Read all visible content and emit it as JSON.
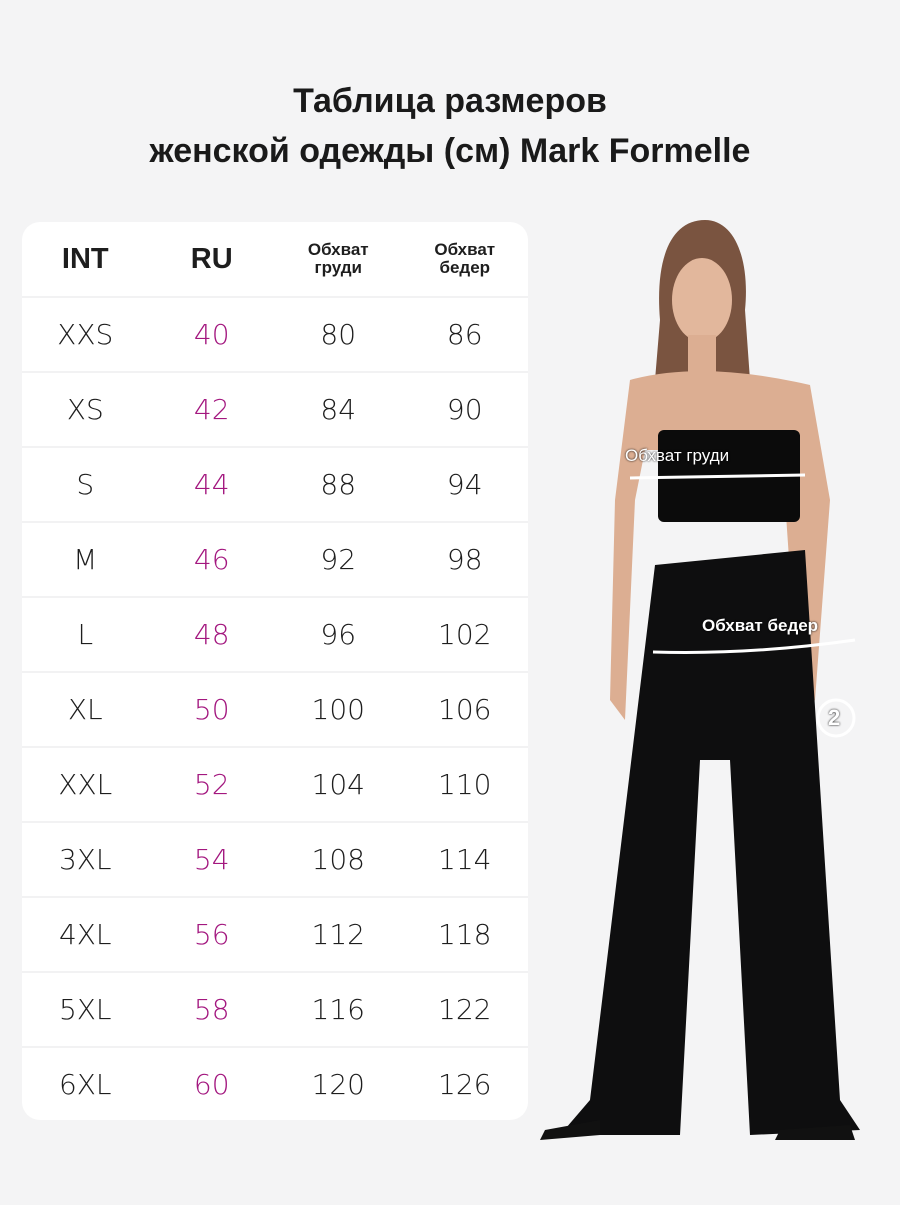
{
  "title": {
    "line1": "Таблица размеров",
    "line2": "женской одежды (см) Mark Formelle"
  },
  "table": {
    "headers": [
      "INT",
      "RU",
      "Обхват груди",
      "Обхват бедер"
    ],
    "rows": [
      [
        "XXS",
        "40",
        "80",
        "86"
      ],
      [
        "XS",
        "42",
        "84",
        "90"
      ],
      [
        "S",
        "44",
        "88",
        "94"
      ],
      [
        "M",
        "46",
        "92",
        "98"
      ],
      [
        "L",
        "48",
        "96",
        "102"
      ],
      [
        "XL",
        "50",
        "100",
        "106"
      ],
      [
        "XXL",
        "52",
        "104",
        "110"
      ],
      [
        "3XL",
        "54",
        "108",
        "114"
      ],
      [
        "4XL",
        "56",
        "112",
        "118"
      ],
      [
        "5XL",
        "58",
        "116",
        "122"
      ],
      [
        "6XL",
        "60",
        "120",
        "126"
      ]
    ]
  },
  "figure": {
    "chest_label": "Обхват груди",
    "hip_label": "Обхват бедер",
    "badge": "2"
  },
  "colors": {
    "ru_accent": "#a3177f",
    "background": "#f4f4f5"
  }
}
